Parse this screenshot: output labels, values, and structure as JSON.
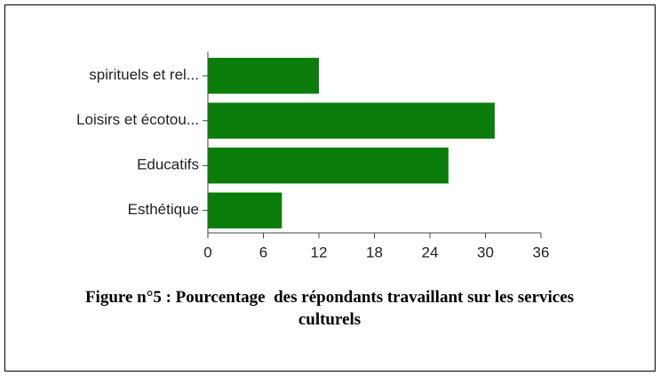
{
  "chart_data": {
    "type": "bar",
    "orientation": "horizontal",
    "title": "Figure n°5 : Pourcentage  des répondants travaillant sur les services culturels",
    "categories": [
      "spirituels et rel...",
      "Loisirs et écotou...",
      "Educatifs",
      "Esthétique"
    ],
    "values": [
      12,
      31,
      26,
      8
    ],
    "color": "#0a7d0a",
    "xlim": [
      0,
      36
    ],
    "xticks": [
      0,
      6,
      12,
      18,
      24,
      30,
      36
    ],
    "grid": false
  }
}
